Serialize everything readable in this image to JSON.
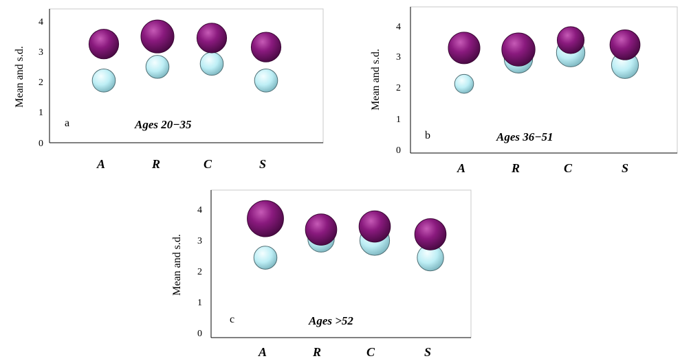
{
  "colors": {
    "mean": "#8a1a7e",
    "sd": "#bdeef5",
    "frame_border": "#c8c8c8",
    "axis": "#000000"
  },
  "chart_data": [
    {
      "type": "scatter",
      "panel_label": "a",
      "title": "Ages 20−35",
      "ylabel": "Mean and s.d.",
      "categories": [
        "A",
        "R",
        "C",
        "S"
      ],
      "yticks": [
        "0",
        "1",
        "2",
        "3",
        "4"
      ],
      "ylim": [
        0,
        4.4
      ],
      "series": [
        {
          "role": "mean",
          "values": [
            3.25,
            3.5,
            3.45,
            3.15
          ],
          "bubble_size": [
            0.9,
            1.0,
            0.9,
            0.9
          ]
        },
        {
          "role": "sd",
          "values": [
            2.05,
            2.5,
            2.6,
            2.05
          ],
          "bubble_size": [
            0.7,
            0.7,
            0.7,
            0.7
          ]
        }
      ]
    },
    {
      "type": "scatter",
      "panel_label": "b",
      "title": "Ages 36−51",
      "ylabel": "Mean and s.d.",
      "categories": [
        "A",
        "R",
        "C",
        "S"
      ],
      "yticks": [
        "0",
        "1",
        "2",
        "3",
        "4"
      ],
      "ylim": [
        0,
        4.4
      ],
      "series": [
        {
          "role": "mean",
          "values": [
            3.3,
            3.25,
            3.55,
            3.4
          ],
          "bubble_size": [
            1.0,
            1.05,
            0.85,
            0.95
          ]
        },
        {
          "role": "sd",
          "values": [
            2.15,
            2.95,
            3.15,
            2.75
          ],
          "bubble_size": [
            0.6,
            0.9,
            0.9,
            0.85
          ]
        }
      ]
    },
    {
      "type": "scatter",
      "panel_label": "c",
      "title": "Ages >52",
      "ylabel": "Mean and s.d.",
      "categories": [
        "A",
        "R",
        "C",
        "S"
      ],
      "yticks": [
        "0",
        "1",
        "2",
        "3",
        "4"
      ],
      "ylim": [
        0,
        4.4
      ],
      "series": [
        {
          "role": "mean",
          "values": [
            3.7,
            3.35,
            3.45,
            3.2
          ],
          "bubble_size": [
            1.1,
            0.95,
            0.95,
            0.95
          ]
        },
        {
          "role": "sd",
          "values": [
            2.45,
            3.05,
            3.0,
            2.45
          ],
          "bubble_size": [
            0.7,
            0.8,
            0.9,
            0.8
          ]
        }
      ]
    }
  ]
}
